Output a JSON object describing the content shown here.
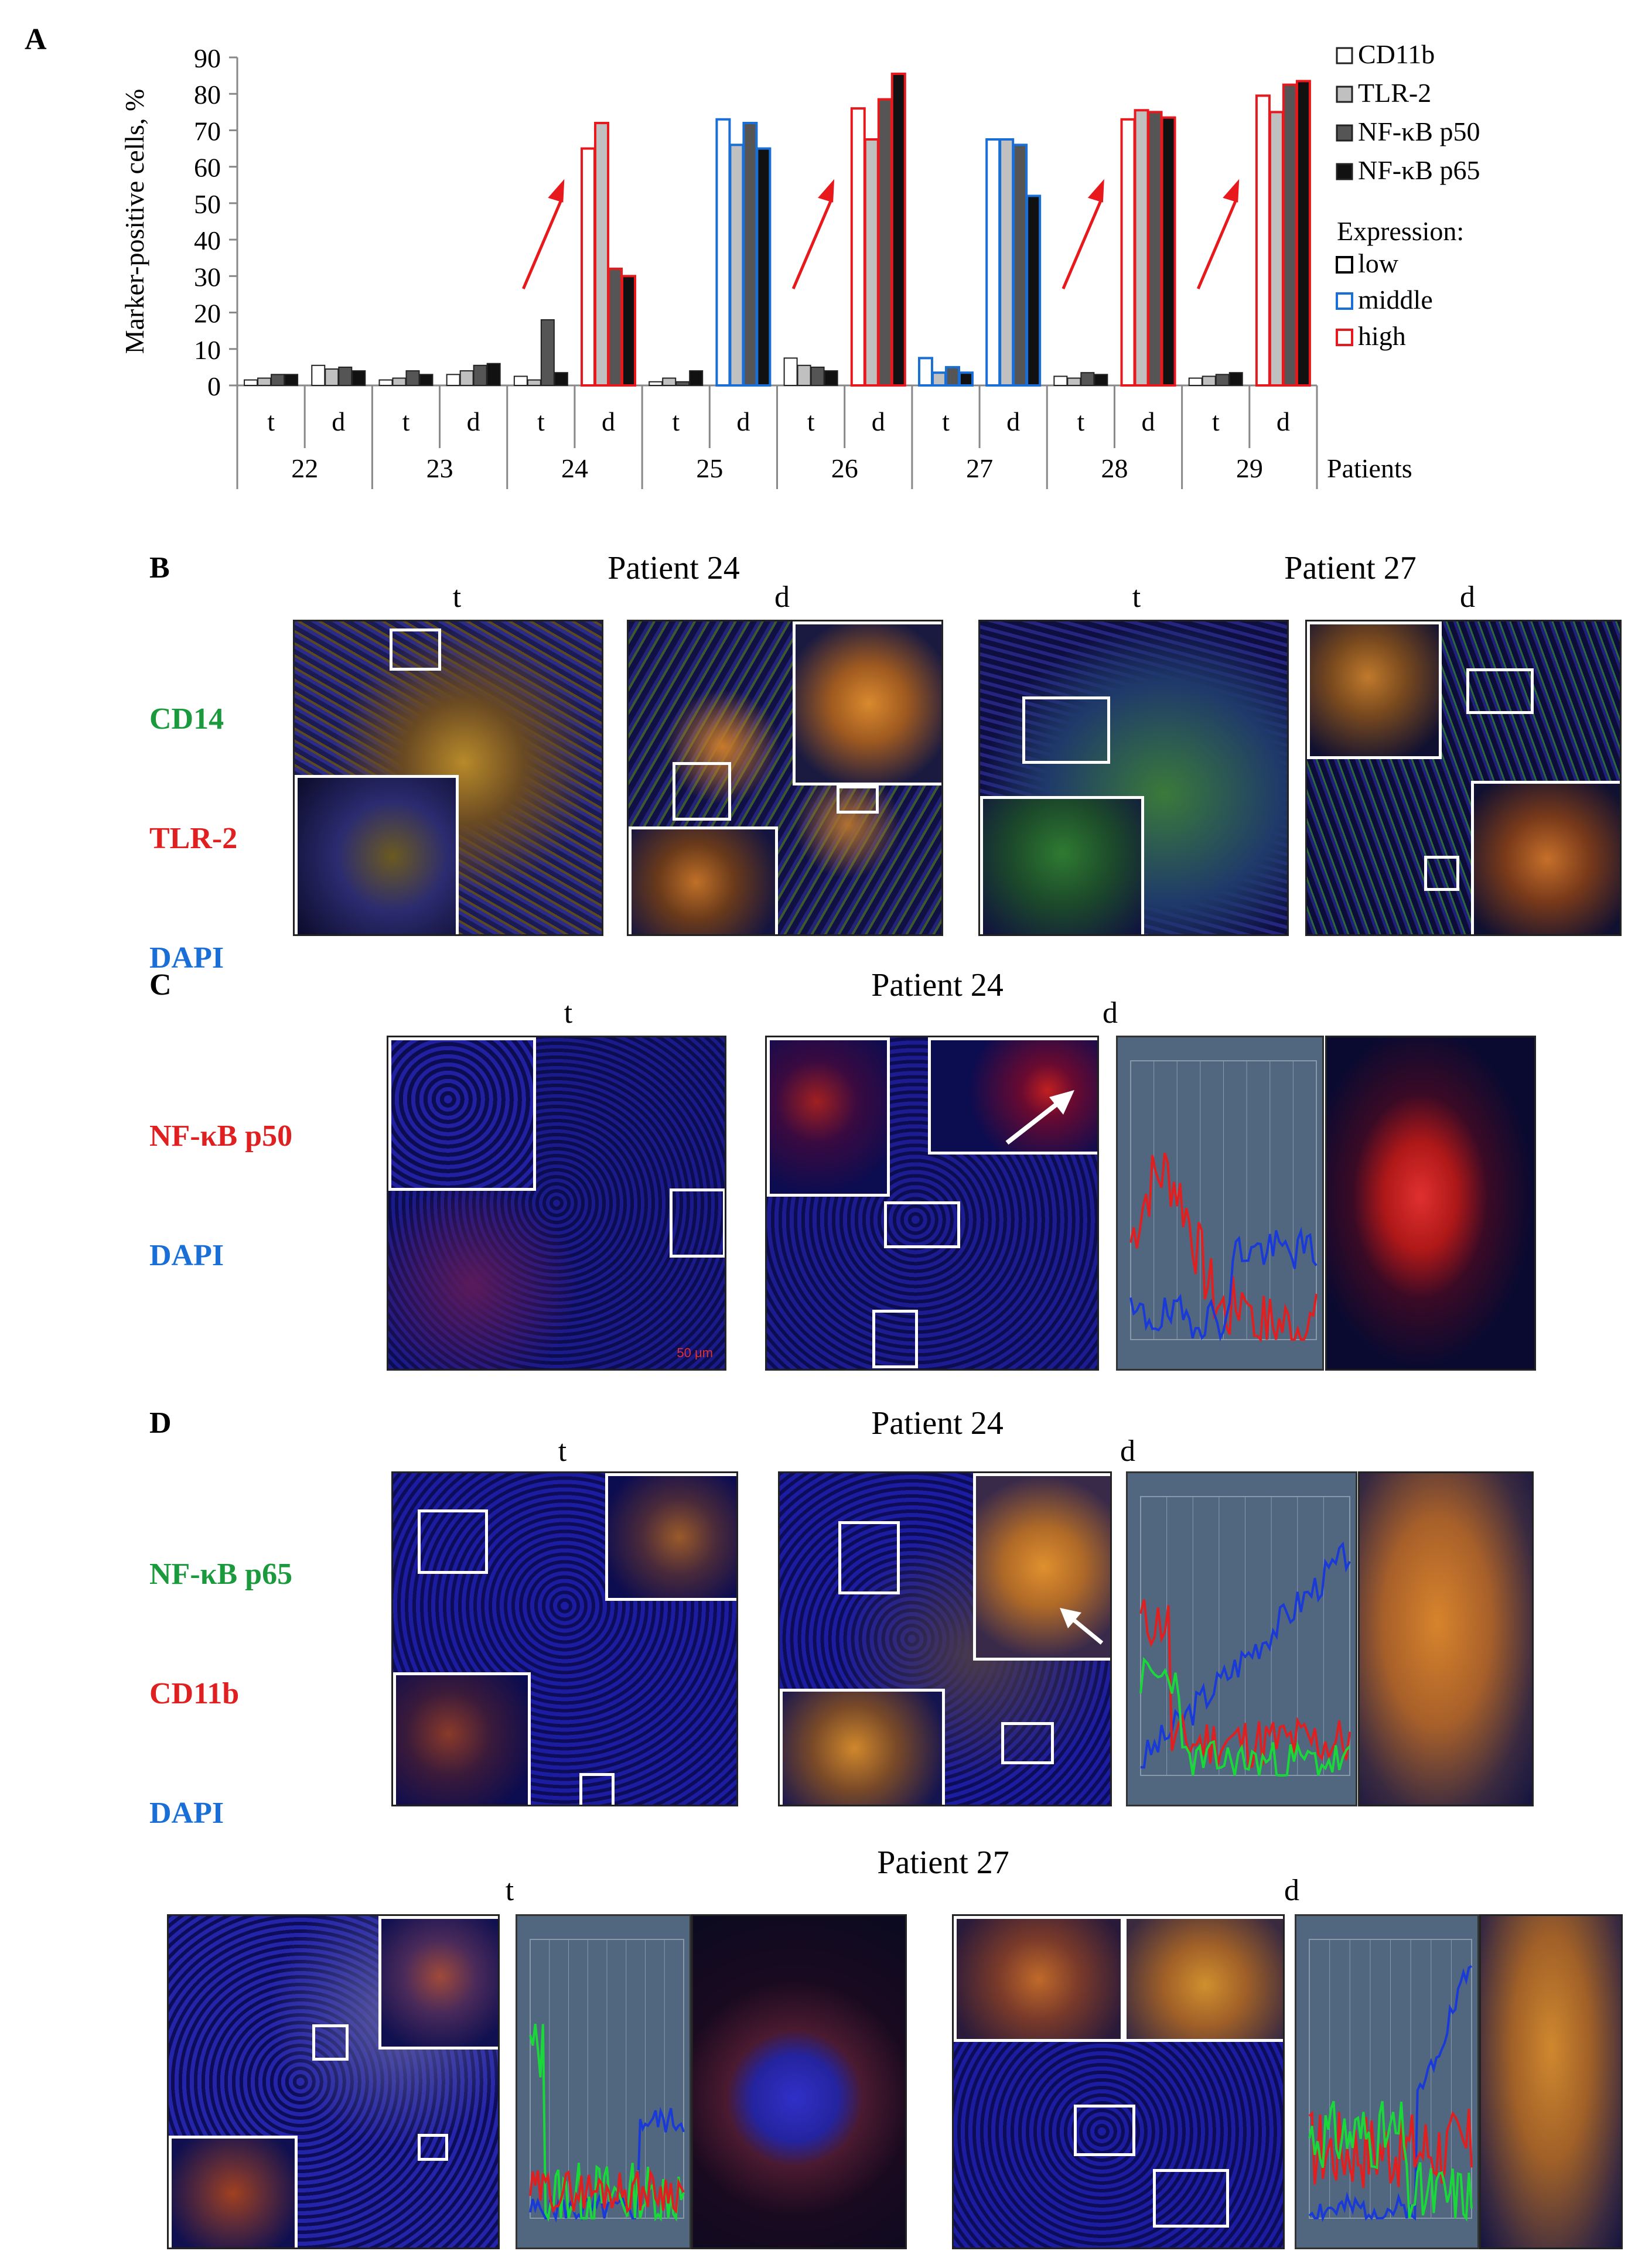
{
  "panels": {
    "A": "A",
    "B": "B",
    "C": "C",
    "D": "D"
  },
  "chart_data": {
    "type": "bar",
    "ylabel": "Marker-positive cells, %",
    "ylim": [
      0,
      90
    ],
    "yticks": [
      0,
      10,
      20,
      30,
      40,
      50,
      60,
      70,
      80,
      90
    ],
    "xlabel": "Patients",
    "patients": [
      "22",
      "23",
      "24",
      "25",
      "26",
      "27",
      "28",
      "29"
    ],
    "subgroups": [
      "t",
      "d"
    ],
    "series": [
      {
        "name": "CD11b",
        "color": "#ffffff"
      },
      {
        "name": "TLR-2",
        "color": "#c0c0c0"
      },
      {
        "name": "NF-κB p50",
        "color": "#555555"
      },
      {
        "name": "NF-κB p65",
        "color": "#111111"
      }
    ],
    "groups": [
      {
        "patient": "22",
        "sub": "t",
        "values": [
          1.5,
          2,
          3,
          3
        ],
        "expression": "low"
      },
      {
        "patient": "22",
        "sub": "d",
        "values": [
          5.5,
          4.5,
          5,
          4
        ],
        "expression": "low"
      },
      {
        "patient": "23",
        "sub": "t",
        "values": [
          1.5,
          2,
          4,
          3
        ],
        "expression": "low"
      },
      {
        "patient": "23",
        "sub": "d",
        "values": [
          3,
          4,
          5.5,
          6
        ],
        "expression": "low"
      },
      {
        "patient": "24",
        "sub": "t",
        "values": [
          2.5,
          1.5,
          18,
          3.5
        ],
        "expression": "low"
      },
      {
        "patient": "24",
        "sub": "d",
        "values": [
          65,
          72,
          32,
          30
        ],
        "expression": "high"
      },
      {
        "patient": "25",
        "sub": "t",
        "values": [
          1,
          2,
          1,
          4
        ],
        "expression": "low"
      },
      {
        "patient": "25",
        "sub": "d",
        "values": [
          73,
          66,
          72,
          65
        ],
        "expression": "middle"
      },
      {
        "patient": "26",
        "sub": "t",
        "values": [
          7.5,
          5.5,
          5,
          4
        ],
        "expression": "low"
      },
      {
        "patient": "26",
        "sub": "d",
        "values": [
          76,
          67.5,
          78.5,
          85.5
        ],
        "expression": "high"
      },
      {
        "patient": "27",
        "sub": "t",
        "values": [
          7.5,
          3.5,
          5,
          3.5
        ],
        "expression": "middle"
      },
      {
        "patient": "27",
        "sub": "d",
        "values": [
          67.5,
          67.5,
          66,
          52
        ],
        "expression": "middle"
      },
      {
        "patient": "28",
        "sub": "t",
        "values": [
          2.5,
          2,
          3.5,
          3
        ],
        "expression": "low"
      },
      {
        "patient": "28",
        "sub": "d",
        "values": [
          73,
          75.5,
          75,
          73.5
        ],
        "expression": "high"
      },
      {
        "patient": "29",
        "sub": "t",
        "values": [
          2,
          2.5,
          3,
          3.5
        ],
        "expression": "low"
      },
      {
        "patient": "29",
        "sub": "d",
        "values": [
          79.5,
          75,
          82.5,
          83.5
        ],
        "expression": "high"
      }
    ],
    "expression_legend": {
      "title": "Expression:",
      "items": [
        {
          "label": "low",
          "color": "#000000"
        },
        {
          "label": "middle",
          "color": "#1a6fd6"
        },
        {
          "label": "high",
          "color": "#e8191c"
        }
      ]
    },
    "arrow_color": "#e8191c"
  },
  "panelB": {
    "header_left": "Patient 24",
    "header_right": "Patient 27",
    "stain_lines": [
      {
        "text": "CD14",
        "color": "#1a9a3c"
      },
      {
        "text": "TLR-2",
        "color": "#e02020"
      },
      {
        "text": "DAPI",
        "color": "#1a6fd6"
      }
    ],
    "subs": [
      "t",
      "d",
      "t",
      "d"
    ]
  },
  "panelC": {
    "header": "Patient 24",
    "stain_lines": [
      {
        "text": "NF-κB p50",
        "color": "#e02020"
      },
      {
        "text": "DAPI",
        "color": "#1a6fd6"
      }
    ],
    "subs": [
      "t",
      "d"
    ]
  },
  "panelD": {
    "header": "Patient 24",
    "header2": "Patient 27",
    "stain_lines": [
      {
        "text": "NF-κB p65",
        "color": "#1a9a3c"
      },
      {
        "text": "CD11b",
        "color": "#e02020"
      },
      {
        "text": "DAPI",
        "color": "#1a6fd6"
      }
    ],
    "subs": [
      "t",
      "d",
      "t",
      "d"
    ]
  },
  "scale_bar": "50 μm"
}
